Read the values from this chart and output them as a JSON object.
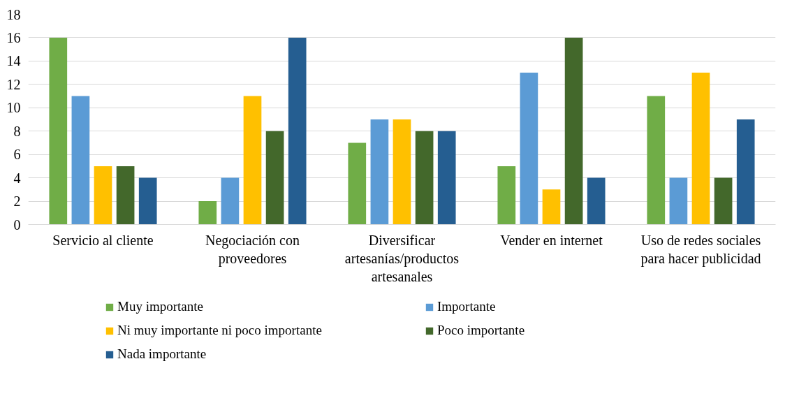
{
  "chart_data": {
    "type": "bar",
    "categories": [
      "Servicio al cliente",
      "Negociación con proveedores",
      "Diversificar artesanías/productos artesanales",
      "Vender en internet",
      "Uso de redes sociales para hacer publicidad"
    ],
    "series": [
      {
        "name": "Muy importante",
        "color": "#70ad47",
        "values": [
          16,
          2,
          7,
          5,
          11
        ]
      },
      {
        "name": "Importante",
        "color": "#5b9bd5",
        "values": [
          11,
          4,
          9,
          13,
          4
        ]
      },
      {
        "name": "Ni muy importante ni poco importante",
        "color": "#ffc000",
        "values": [
          5,
          11,
          9,
          3,
          13
        ]
      },
      {
        "name": "Poco importante",
        "color": "#43682b",
        "values": [
          5,
          8,
          8,
          16,
          4
        ]
      },
      {
        "name": "Nada importante",
        "color": "#255e91",
        "values": [
          4,
          16,
          8,
          4,
          9
        ]
      }
    ],
    "ylim": [
      0,
      18
    ],
    "yticks": [
      0,
      2,
      4,
      6,
      8,
      10,
      12,
      14,
      16,
      18
    ],
    "grid": "y",
    "legend": "bottom"
  }
}
